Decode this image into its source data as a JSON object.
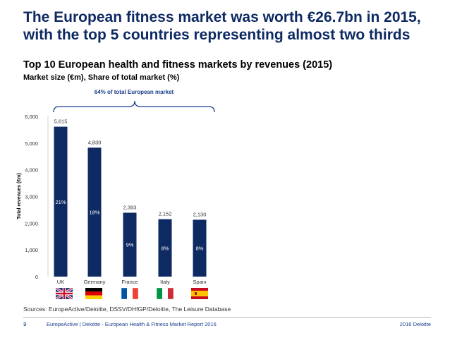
{
  "headline": "The European fitness market was worth €26.7bn in 2015, with the top 5 countries representing almost two thirds",
  "subtitle": "Top 10 European health and fitness markets by revenues (2015)",
  "metric_label": "Market size (€m), Share of total market (%)",
  "bracket_label": "64% of total European market",
  "source": "Sources: EuropeActive/Deloitte, DSSV/DHfGP/Deloitte, The Leisure Database",
  "footer": {
    "page": "3",
    "text": "EuropeActive | Deloitte - European Health & Fitness Market Report 2016",
    "right": "2016 Deloitte"
  },
  "colors": {
    "bar": "#0e2a63",
    "headline": "#0e2a63",
    "footer": "#1b3d8f"
  },
  "chart_data": {
    "type": "bar",
    "title": "",
    "xlabel": "",
    "ylabel": "Total revenues (€m)",
    "ylim": [
      0,
      6000
    ],
    "yticks": [
      0,
      1000,
      2000,
      3000,
      4000,
      5000,
      6000
    ],
    "ytick_labels": [
      "0",
      "1,000",
      "2,000",
      "3,000",
      "4,000",
      "5,000",
      "6,000"
    ],
    "grid": false,
    "categories": [
      "UK",
      "Germany",
      "France",
      "Italy",
      "Spain"
    ],
    "values": [
      5615,
      4830,
      2393,
      2152,
      2130
    ],
    "value_labels": [
      "5,615",
      "4,830",
      "2,393",
      "2,152",
      "2,130"
    ],
    "share_labels": [
      "21%",
      "18%",
      "9%",
      "8%",
      "8%"
    ],
    "flags": [
      "uk-flag-icon",
      "germany-flag-icon",
      "france-flag-icon",
      "italy-flag-icon",
      "spain-flag-icon"
    ]
  }
}
